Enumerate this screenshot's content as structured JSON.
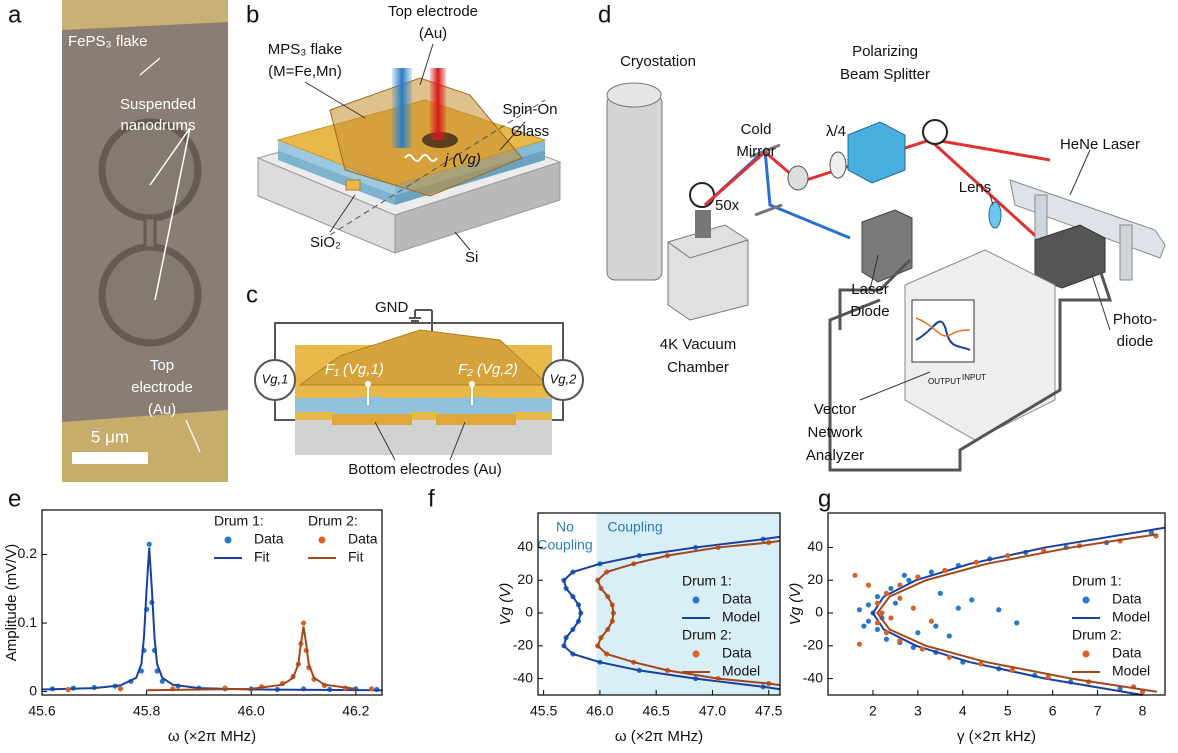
{
  "figure": {
    "panel_labels": [
      "a",
      "b",
      "c",
      "d",
      "e",
      "f",
      "g"
    ],
    "a": {
      "flake": "FePS₃ flake",
      "nanodrums": [
        "Suspended",
        "nanodrums"
      ],
      "electrode": [
        "Top",
        "electrode",
        "(Au)"
      ],
      "scale": "5 μm"
    },
    "b": {
      "electrode": [
        "Top electrode",
        "(Au)"
      ],
      "flake": [
        "MPS₃ flake",
        "(M=Fe,Mn)"
      ],
      "glass": [
        "Spin-On",
        "Glass"
      ],
      "current": "j (Vg)",
      "oxide": "SiO₂",
      "substrate": "Si"
    },
    "c": {
      "gnd": "GND",
      "f1": "F₁ (Vg,1)",
      "f2": "F₂ (Vg,2)",
      "v1": "Vg,1",
      "v2": "Vg,2",
      "bottom": "Bottom electrodes (Au)"
    },
    "d": {
      "cryostation": "Cryostation",
      "cold_mirror": [
        "Cold",
        "Mirror"
      ],
      "pbs": [
        "Polarizing",
        "Beam Splitter"
      ],
      "quarter": "λ/4",
      "hene": "HeNe Laser",
      "lens": "Lens",
      "objective": "50x",
      "laser_diode": [
        "Laser",
        "Diode"
      ],
      "chamber": [
        "4K Vacuum",
        "Chamber"
      ],
      "photodiode": [
        "Photo-",
        "diode"
      ],
      "vna": [
        "Vector",
        "Network",
        "Analyzer"
      ],
      "ports": [
        "OUTPUT",
        "INPUT"
      ]
    }
  },
  "chart_data": [
    {
      "type": "line",
      "xlabel": "ω (×2π MHz)",
      "ylabel": "Amplitude (mV/V)",
      "xlim": [
        45.6,
        46.25
      ],
      "xticks": [
        45.6,
        45.8,
        {
          "value": 46,
          "label": "46.0"
        },
        46.2
      ],
      "ylim": [
        -0.005,
        0.265
      ],
      "yticks": [
        0,
        0.1,
        0.2
      ],
      "legend": "upper right",
      "legend_titles": [
        "Drum 1:",
        "Drum 2:"
      ],
      "series": [
        {
          "name": "Data",
          "mode": "markers",
          "color": "#2a78c8",
          "x": [
            45.62,
            45.66,
            45.7,
            45.74,
            45.77,
            45.79,
            45.795,
            45.8,
            45.805,
            45.81,
            45.815,
            45.82,
            45.83,
            45.86,
            45.9,
            45.95,
            46.0,
            46.05,
            46.1,
            46.15,
            46.2,
            46.24
          ],
          "values": [
            0.004,
            0.005,
            0.006,
            0.008,
            0.015,
            0.03,
            0.06,
            0.12,
            0.215,
            0.13,
            0.06,
            0.03,
            0.015,
            0.008,
            0.005,
            0.004,
            0.004,
            0.003,
            0.004,
            0.003,
            0.004,
            0.003
          ]
        },
        {
          "name": "Fit",
          "mode": "line",
          "color": "#1a3fa0",
          "x": [
            45.6,
            45.7,
            45.75,
            45.78,
            45.79,
            45.795,
            45.8,
            45.805,
            45.81,
            45.815,
            45.82,
            45.83,
            45.85,
            45.9,
            46.0,
            46.25
          ],
          "values": [
            0.003,
            0.005,
            0.009,
            0.02,
            0.04,
            0.08,
            0.15,
            0.21,
            0.15,
            0.08,
            0.04,
            0.02,
            0.01,
            0.005,
            0.003,
            0.002
          ]
        },
        {
          "name": "Data",
          "mode": "markers",
          "color": "#d9622b",
          "x": [
            45.65,
            45.75,
            45.85,
            45.95,
            46.02,
            46.06,
            46.08,
            46.09,
            46.095,
            46.1,
            46.105,
            46.11,
            46.12,
            46.14,
            46.18,
            46.23
          ],
          "values": [
            0.003,
            0.004,
            0.004,
            0.005,
            0.007,
            0.012,
            0.022,
            0.04,
            0.07,
            0.1,
            0.06,
            0.035,
            0.018,
            0.009,
            0.005,
            0.004
          ]
        },
        {
          "name": "Fit",
          "mode": "line",
          "color": "#a4461c",
          "x": [
            45.8,
            46.0,
            46.06,
            46.08,
            46.09,
            46.095,
            46.1,
            46.105,
            46.11,
            46.12,
            46.14,
            46.2
          ],
          "values": [
            0.002,
            0.004,
            0.01,
            0.02,
            0.04,
            0.07,
            0.095,
            0.07,
            0.04,
            0.02,
            0.01,
            0.004
          ]
        }
      ]
    },
    {
      "type": "line",
      "xlabel": "ω (×2π MHz)",
      "ylabel": "Vg (V)",
      "xlim": [
        45.45,
        47.6
      ],
      "xticks": [
        45.5,
        {
          "value": 46,
          "label": "46.0"
        },
        46.5,
        {
          "value": 47,
          "label": "47.0"
        },
        47.5
      ],
      "ylim": [
        -50,
        61
      ],
      "yticks": [
        -40,
        -20,
        0,
        20,
        40
      ],
      "legend": "right",
      "legend_titles": [
        "Drum 1:",
        "Drum 2:"
      ],
      "shade_from": 45.97,
      "shade_color": "#d9eff7",
      "annotations": [
        "No",
        "Coupling",
        "Coupling"
      ],
      "series": [
        {
          "name": "Data",
          "mode": "markers",
          "color": "#2a78c8",
          "x": [
            47.45,
            46.85,
            46.35,
            46.0,
            45.76,
            45.68,
            45.7,
            45.76,
            45.81,
            45.83,
            45.81,
            45.76,
            45.7,
            45.68,
            45.76,
            46.0,
            46.35,
            46.85,
            47.45
          ],
          "values": [
            45,
            40,
            35,
            30,
            25,
            20,
            15,
            10,
            5,
            0,
            -5,
            -10,
            -15,
            -20,
            -25,
            -30,
            -35,
            -40,
            -45
          ]
        },
        {
          "name": "Model",
          "mode": "line",
          "color": "#1a3fa0",
          "x": [
            47.6,
            47.45,
            46.85,
            46.35,
            46.0,
            45.76,
            45.68,
            45.7,
            45.76,
            45.81,
            45.83,
            45.81,
            45.76,
            45.7,
            45.68,
            45.76,
            46.0,
            46.35,
            46.85,
            47.45,
            47.6
          ],
          "values": [
            46.5,
            45,
            40,
            35,
            30,
            25,
            20,
            15,
            10,
            5,
            0,
            -5,
            -10,
            -15,
            -20,
            -25,
            -30,
            -35,
            -40,
            -45,
            -46.5
          ]
        },
        {
          "name": "Data",
          "mode": "markers",
          "color": "#d9622b",
          "x": [
            47.5,
            47.05,
            46.6,
            46.3,
            46.06,
            45.98,
            46.01,
            46.07,
            46.11,
            46.12,
            46.11,
            46.07,
            46.01,
            45.98,
            46.06,
            46.3,
            46.6,
            47.05,
            47.5
          ],
          "values": [
            43,
            40,
            35,
            30,
            25,
            20,
            15,
            10,
            5,
            0,
            -5,
            -10,
            -15,
            -20,
            -25,
            -30,
            -35,
            -40,
            -43
          ]
        },
        {
          "name": "Model",
          "mode": "line",
          "color": "#a4461c",
          "x": [
            47.6,
            47.5,
            47.05,
            46.6,
            46.3,
            46.06,
            45.98,
            46.01,
            46.07,
            46.11,
            46.12,
            46.11,
            46.07,
            46.01,
            45.98,
            46.06,
            46.3,
            46.6,
            47.05,
            47.5,
            47.6
          ],
          "values": [
            44,
            43,
            40,
            35,
            30,
            25,
            20,
            15,
            10,
            5,
            0,
            -5,
            -10,
            -15,
            -20,
            -25,
            -30,
            -35,
            -40,
            -43,
            -44
          ]
        }
      ]
    },
    {
      "type": "scatter",
      "xlabel": "γ (×2π kHz)",
      "ylabel": "Vg (V)",
      "xlim": [
        1,
        8.5
      ],
      "xticks": [
        2,
        3,
        4,
        5,
        6,
        7,
        8
      ],
      "ylim": [
        -50,
        61
      ],
      "yticks": [
        -40,
        -20,
        0,
        20,
        40
      ],
      "legend": "right",
      "legend_titles": [
        "Drum 1:",
        "Drum 2:"
      ],
      "series": [
        {
          "name": "Data",
          "mode": "markers",
          "color": "#2a78c8",
          "x": [
            2.0,
            1.9,
            1.9,
            2.1,
            2.1,
            2.4,
            2.3,
            2.8,
            2.9,
            3.3,
            3.4,
            3.9,
            4.0,
            4.6,
            4.8,
            5.4,
            5.6,
            6.3,
            6.4,
            7.2,
            7.5,
            8.2,
            2.2,
            1.8,
            1.7,
            2.5,
            3.5,
            3.9,
            3.4,
            4.2,
            4.8,
            3.0,
            2.6,
            2.7,
            3.7,
            5.2
          ],
          "values": [
            0,
            5,
            -5,
            10,
            -10,
            15,
            -16,
            20,
            -21,
            25,
            -24,
            29,
            -30,
            33,
            -34,
            37,
            -38,
            40,
            -42,
            43,
            -46,
            49,
            -3,
            -8,
            2,
            6,
            12,
            3,
            -8,
            8,
            2,
            -12,
            -18,
            23,
            -14,
            -6
          ]
        },
        {
          "name": "Model",
          "mode": "line",
          "color": "#1a3fa0",
          "x": [
            8.0,
            5.84,
            4.16,
            2.96,
            2.24,
            2.0,
            2.24,
            2.96,
            4.16,
            5.84,
            8.49
          ],
          "values": [
            -50,
            -40,
            -30,
            -20,
            -10,
            0,
            10,
            20,
            30,
            40,
            52
          ]
        },
        {
          "name": "Data",
          "mode": "markers",
          "color": "#d9622b",
          "x": [
            2.2,
            2.1,
            2.1,
            2.3,
            2.3,
            2.6,
            2.6,
            3.0,
            3.1,
            3.6,
            3.7,
            4.3,
            4.4,
            5.0,
            5.1,
            5.8,
            5.9,
            6.6,
            6.8,
            7.5,
            7.8,
            8.3,
            1.6,
            1.7,
            2.9,
            3.3,
            2.6,
            1.9,
            8.0,
            2.4
          ],
          "values": [
            0,
            6,
            -6,
            12,
            -12,
            17,
            -17,
            22,
            -22,
            26,
            -27,
            31,
            -31,
            35,
            -35,
            38,
            -39,
            41,
            -42,
            44,
            -45,
            47,
            23,
            -19,
            3,
            -5,
            9,
            17,
            -48,
            -3
          ]
        },
        {
          "name": "Model",
          "mode": "line",
          "color": "#a4461c",
          "x": [
            8.32,
            6.42,
            4.53,
            3.18,
            2.37,
            2.1,
            2.37,
            3.18,
            4.53,
            6.42,
            8.32
          ],
          "values": [
            -48,
            -40,
            -30,
            -20,
            -10,
            0,
            10,
            20,
            30,
            40,
            48
          ]
        }
      ]
    }
  ]
}
